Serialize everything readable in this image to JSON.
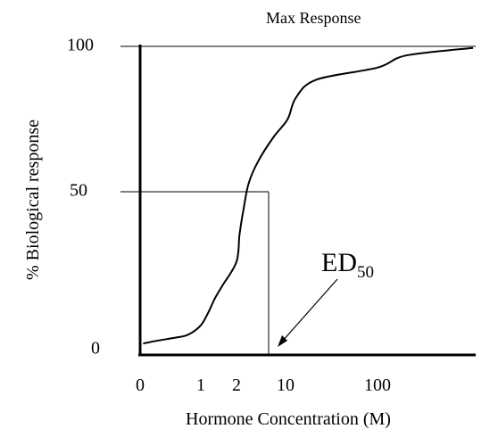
{
  "chart_data": {
    "type": "line",
    "title": "",
    "xlabel": "Hormone Concentration (M)",
    "ylabel": "% Biological response",
    "x_scale": "log-like",
    "grid": false,
    "legend": "none",
    "x_ticks": [
      {
        "label": "0"
      },
      {
        "label": "1"
      },
      {
        "label": "2"
      },
      {
        "label": "10"
      },
      {
        "label": "100"
      }
    ],
    "y_ticks": [
      {
        "label": "0",
        "value": 0
      },
      {
        "label": "50",
        "value": 50
      },
      {
        "label": "100",
        "value": 100
      }
    ],
    "ylim": [
      0,
      100
    ],
    "series": [
      {
        "points": [
          {
            "x": 0.05,
            "y": 2
          },
          {
            "x": 0.3,
            "y": 3
          },
          {
            "x": 0.6,
            "y": 4
          },
          {
            "x": 0.8,
            "y": 5
          },
          {
            "x": 1.0,
            "y": 8
          },
          {
            "x": 1.2,
            "y": 12
          },
          {
            "x": 1.4,
            "y": 17
          },
          {
            "x": 1.6,
            "y": 21
          },
          {
            "x": 2.0,
            "y": 29
          },
          {
            "x": 2.5,
            "y": 38
          },
          {
            "x": 3.2,
            "y": 47
          },
          {
            "x": 4.0,
            "y": 55
          },
          {
            "x": 5.5,
            "y": 62
          },
          {
            "x": 8.0,
            "y": 70
          },
          {
            "x": 12.0,
            "y": 76
          },
          {
            "x": 20.0,
            "y": 83
          },
          {
            "x": 40.0,
            "y": 89
          },
          {
            "x": 100.0,
            "y": 93
          },
          {
            "x": 250.0,
            "y": 97
          },
          {
            "x": 600.0,
            "y": 99.5
          }
        ]
      }
    ],
    "annotations": {
      "max_response": {
        "label": "Max Response",
        "y": 100
      },
      "ed50": {
        "label": "ED",
        "subscript": "50",
        "x": 3.3,
        "y": 50
      }
    },
    "colors": {
      "axis": "#000000",
      "line": "#000000"
    }
  }
}
